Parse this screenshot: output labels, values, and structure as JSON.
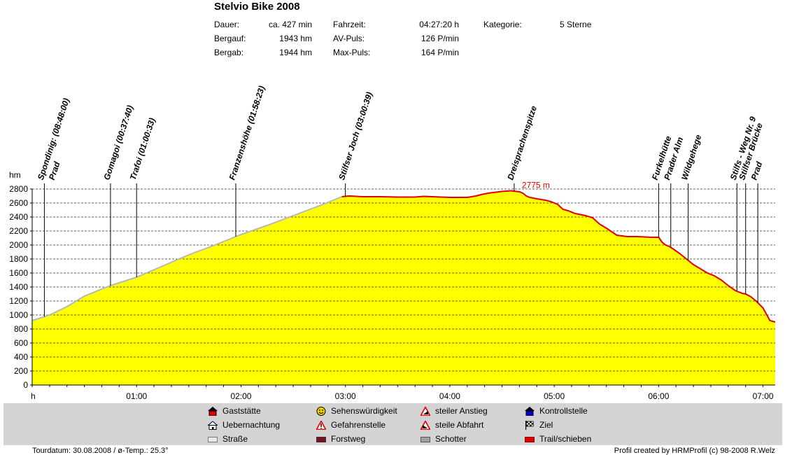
{
  "title": "Stelvio Bike 2008",
  "stats": {
    "dauer": {
      "label": "Dauer:",
      "value": "ca. 427 min"
    },
    "bergauf": {
      "label": "Bergauf:",
      "value": "1943 hm"
    },
    "bergab": {
      "label": "Bergab:",
      "value": "1944 hm"
    },
    "fahrzeit": {
      "label": "Fahrzeit:",
      "value": "04:27:20 h"
    },
    "avpuls": {
      "label": "AV-Puls:",
      "value": "126 P/min"
    },
    "maxpuls": {
      "label": "Max-Puls:",
      "value": "164 P/min"
    },
    "kategorie": {
      "label": "Kategorie:",
      "value": "5 Sterne"
    }
  },
  "colors": {
    "fill": "#ffff00",
    "trail": "#e00000",
    "road": "#b8b8b8",
    "max_label": "#e00000"
  },
  "chart_data": {
    "type": "area",
    "ylabel": "hm",
    "xlabel_start": "h",
    "ylim": [
      0,
      2800
    ],
    "y_ticks": [
      0,
      200,
      400,
      600,
      800,
      1000,
      1200,
      1400,
      1600,
      1800,
      2000,
      2200,
      2400,
      2600,
      2800
    ],
    "xlim_min": [
      0,
      427
    ],
    "x_ticks": [
      {
        "min": 60,
        "label": "01:00"
      },
      {
        "min": 120,
        "label": "02:00"
      },
      {
        "min": 180,
        "label": "03:00"
      },
      {
        "min": 240,
        "label": "04:00"
      },
      {
        "min": 300,
        "label": "05:00"
      },
      {
        "min": 360,
        "label": "06:00"
      },
      {
        "min": 420,
        "label": "07:00"
      }
    ],
    "max_label": "2775 m",
    "max_point": {
      "min": 279,
      "hm": 2775
    },
    "profile_min": [
      0,
      10,
      20,
      30,
      45,
      60,
      75,
      90,
      105,
      120,
      135,
      150,
      165,
      178,
      182,
      190,
      200,
      210,
      220,
      225,
      230,
      240,
      250,
      255,
      258,
      262,
      265,
      270,
      275,
      280,
      282,
      284,
      286,
      288,
      290,
      295,
      298,
      302,
      305,
      308,
      312,
      318,
      322,
      326,
      330,
      336,
      342,
      348,
      356,
      360,
      362,
      364,
      366,
      368,
      372,
      376,
      380,
      384,
      388,
      392,
      396,
      400,
      404,
      408,
      410,
      413,
      416,
      420,
      424,
      427
    ],
    "profile_hm": [
      920,
      1000,
      1120,
      1270,
      1420,
      1540,
      1700,
      1860,
      2000,
      2150,
      2280,
      2420,
      2560,
      2690,
      2700,
      2690,
      2690,
      2685,
      2685,
      2695,
      2690,
      2680,
      2680,
      2700,
      2720,
      2740,
      2750,
      2765,
      2775,
      2760,
      2740,
      2700,
      2680,
      2670,
      2660,
      2640,
      2620,
      2580,
      2510,
      2490,
      2450,
      2420,
      2390,
      2300,
      2240,
      2140,
      2120,
      2120,
      2110,
      2110,
      2040,
      2000,
      1980,
      1950,
      1880,
      1800,
      1720,
      1660,
      1600,
      1560,
      1500,
      1420,
      1350,
      1310,
      1300,
      1260,
      1200,
      1100,
      920,
      900
    ],
    "road_until_min": 178,
    "trail_from_min": 178,
    "waypoints": [
      {
        "min": 7,
        "labels": [
          "Spondinig: (08:48:00)",
          "Prad"
        ]
      },
      {
        "min": 45,
        "labels": [
          "Gomagoi (00:37:40)"
        ]
      },
      {
        "min": 60,
        "labels": [
          "Trafoi (01:00:33)"
        ]
      },
      {
        "min": 117,
        "labels": [
          "Franzenshöhe (01:58:23)"
        ]
      },
      {
        "min": 180,
        "labels": [
          "Stilfser Joch (03:00:39)"
        ]
      },
      {
        "min": 277,
        "labels": [
          "Dreisprachenspitze"
        ]
      },
      {
        "min": 360,
        "labels": [
          "Furkelhütte"
        ]
      },
      {
        "min": 367,
        "labels": [
          "Prader Alm"
        ]
      },
      {
        "min": 377,
        "labels": [
          "Wildgehege"
        ]
      },
      {
        "min": 405,
        "labels": [
          "Stilfs - Weg Nr. 9"
        ]
      },
      {
        "min": 410,
        "labels": [
          "Stilfser Brücke"
        ]
      },
      {
        "min": 417,
        "labels": [
          "Prad"
        ]
      }
    ]
  },
  "legend": [
    {
      "name": "gasthouse",
      "label": "Gaststätte",
      "icon": "red-house-icon"
    },
    {
      "name": "sights",
      "label": "Sehenswürdigkeit",
      "icon": "smiley-icon"
    },
    {
      "name": "steep-climb",
      "label": "steiler Anstieg",
      "icon": "warning-triangle-icon"
    },
    {
      "name": "checkpoint",
      "label": "Kontrollstelle",
      "icon": "blue-house-icon"
    },
    {
      "name": "overnight",
      "label": "Uebernachtung",
      "icon": "hut-icon"
    },
    {
      "name": "danger",
      "label": "Gefahrenstelle",
      "icon": "danger-icon"
    },
    {
      "name": "steep-descent",
      "label": "steile Abfahrt",
      "icon": "warning-triangle-icon"
    },
    {
      "name": "finish",
      "label": "Ziel",
      "icon": "checkered-flag-icon"
    },
    {
      "name": "road",
      "label": "Straße",
      "icon": "road-swatch-icon",
      "color": "#e8e8e8"
    },
    {
      "name": "forest-road",
      "label": "Forstweg",
      "icon": "forest-swatch-icon",
      "color": "#7a1020"
    },
    {
      "name": "gravel",
      "label": "Schotter",
      "icon": "gravel-swatch-icon",
      "color": "#a0a0a0"
    },
    {
      "name": "trail",
      "label": "Trail/schieben",
      "icon": "trail-swatch-icon",
      "color": "#e00000"
    }
  ],
  "footer": {
    "left": "Tourdatum: 30.08.2008  /  ø-Temp.: 25.3°",
    "right": "Profil created by HRMProfil (c) 98-2008 R.Welz"
  }
}
